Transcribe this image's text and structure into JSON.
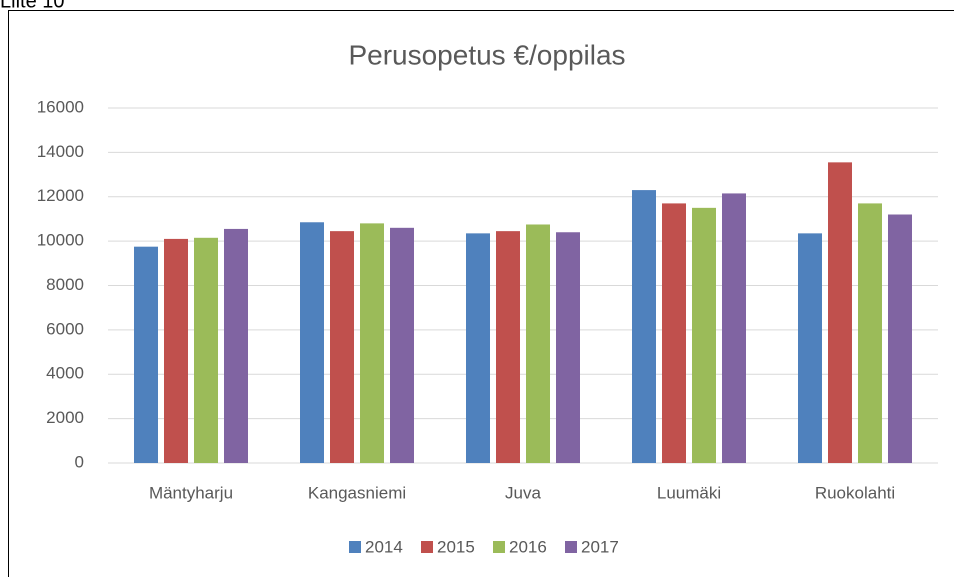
{
  "header": {
    "title": "Liite 10"
  },
  "chart_data": {
    "type": "bar",
    "title": "Perusopetus €/oppilas",
    "categories": [
      "Mäntyharju",
      "Kangasniemi",
      "Juva",
      "Luumäki",
      "Ruokolahti"
    ],
    "series": [
      {
        "name": "2014",
        "color": "#4f81bd",
        "values": [
          9750,
          10850,
          10350,
          12300,
          10350
        ]
      },
      {
        "name": "2015",
        "color": "#c0504d",
        "values": [
          10100,
          10450,
          10450,
          11700,
          13550
        ]
      },
      {
        "name": "2016",
        "color": "#9bbb59",
        "values": [
          10150,
          10800,
          10750,
          11500,
          11700
        ]
      },
      {
        "name": "2017",
        "color": "#8064a2",
        "values": [
          10550,
          10600,
          10400,
          12150,
          11200
        ]
      }
    ],
    "ylim": [
      0,
      16000
    ],
    "yticks": [
      0,
      2000,
      4000,
      6000,
      8000,
      10000,
      12000,
      14000,
      16000
    ],
    "grid": true,
    "legend": "bottom"
  }
}
